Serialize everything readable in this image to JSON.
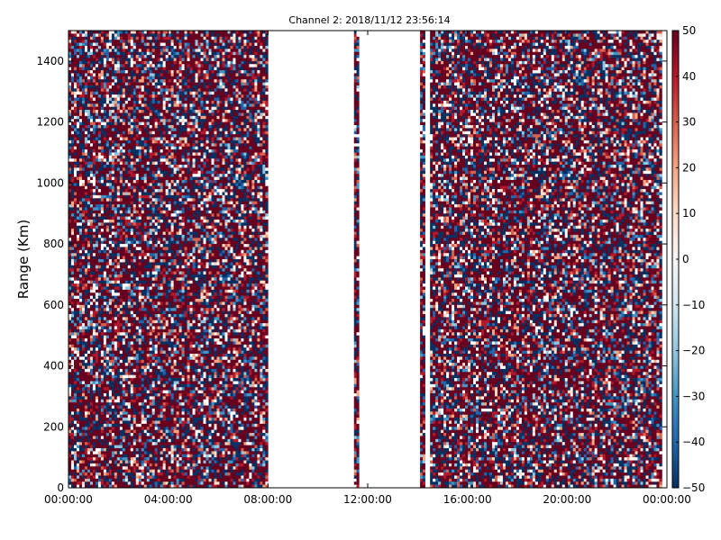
{
  "chart_data": {
    "type": "heatmap",
    "title": "Channel 2: 2018/11/12 23:56:14",
    "xlabel": "",
    "ylabel": "Range (Km)",
    "x_tick_labels": [
      "00:00:00",
      "04:00:00",
      "08:00:00",
      "12:00:00",
      "16:00:00",
      "20:00:00",
      "00:00:00"
    ],
    "x_range_hours": [
      0,
      24
    ],
    "y_ticks": [
      0,
      200,
      400,
      600,
      800,
      1000,
      1200,
      1400
    ],
    "y_range": [
      0,
      1500
    ],
    "colorbar": {
      "ticks": [
        50,
        40,
        30,
        20,
        10,
        0,
        -10,
        -20,
        -30,
        -40,
        -50
      ],
      "tick_labels": [
        "50",
        "40",
        "30",
        "20",
        "10",
        "0",
        "−10",
        "−20",
        "−30",
        "−40",
        "−50"
      ],
      "range": [
        -50,
        50
      ],
      "colormap": [
        "#053061",
        "#2166ac",
        "#4393c3",
        "#92c5de",
        "#d1e5f0",
        "#f7f7f7",
        "#fddbc7",
        "#f4a582",
        "#d6604d",
        "#b2182b",
        "#67001f"
      ]
    },
    "data_segments_hours": [
      [
        0,
        8.0
      ],
      [
        11.45,
        11.65
      ],
      [
        14.1,
        14.3
      ],
      [
        14.5,
        23.8
      ]
    ],
    "grid": false
  }
}
